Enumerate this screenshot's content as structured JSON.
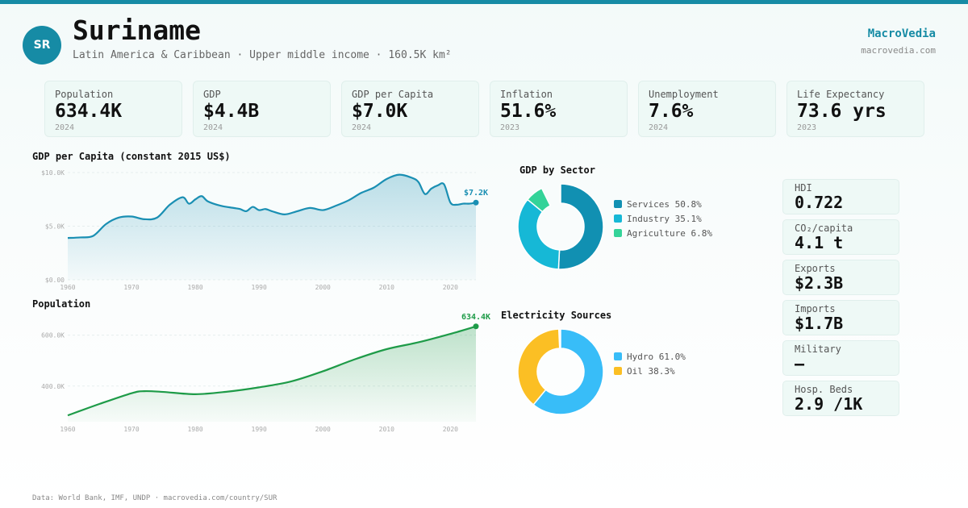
{
  "header": {
    "code": "SR",
    "country": "Suriname",
    "subtitle": "Latin America & Caribbean · Upper middle income · 160.5K km²",
    "brand": "MacroVedia",
    "brand_url": "macrovedia.com"
  },
  "kpis": [
    {
      "label": "Population",
      "value": "634.4K",
      "year": "2024"
    },
    {
      "label": "GDP",
      "value": "$4.4B",
      "year": "2024"
    },
    {
      "label": "GDP per Capita",
      "value": "$7.0K",
      "year": "2024"
    },
    {
      "label": "Inflation",
      "value": "51.6%",
      "year": "2023"
    },
    {
      "label": "Unemployment",
      "value": "7.6%",
      "year": "2024"
    },
    {
      "label": "Life Expectancy",
      "value": "73.6 yrs",
      "year": "2023"
    }
  ],
  "side_stats": [
    {
      "label": "HDI",
      "value": "0.722"
    },
    {
      "label": "CO₂/capita",
      "value": "4.1 t"
    },
    {
      "label": "Exports",
      "value": "$2.3B"
    },
    {
      "label": "Imports",
      "value": "$1.7B"
    },
    {
      "label": "Military",
      "value": "—"
    },
    {
      "label": "Hosp. Beds",
      "value": "2.9 /1K"
    }
  ],
  "footer": "Data: World Bank, IMF, UNDP · macrovedia.com/country/SUR",
  "colors": {
    "accent": "#168ba5",
    "gdp_line": "#1a8fb3",
    "pop_line": "#1e9b48",
    "services": "#1190b2",
    "industry": "#16b8d6",
    "agriculture": "#34d399",
    "hydro": "#38bdf8",
    "oil": "#fbbf24"
  },
  "chart_data": [
    {
      "id": "gdp_per_capita",
      "type": "area",
      "title": "GDP per Capita (constant 2015 US$)",
      "x": [
        1960,
        1962,
        1964,
        1966,
        1968,
        1970,
        1972,
        1974,
        1976,
        1978,
        1979,
        1980,
        1981,
        1982,
        1984,
        1986,
        1987,
        1988,
        1989,
        1990,
        1991,
        1992,
        1994,
        1996,
        1998,
        2000,
        2002,
        2004,
        2006,
        2008,
        2010,
        2012,
        2014,
        2015,
        2016,
        2017,
        2018,
        2019,
        2020,
        2021,
        2022,
        2023,
        2024
      ],
      "y": [
        3900,
        3950,
        4100,
        5200,
        5800,
        5900,
        5650,
        5800,
        7000,
        7700,
        7100,
        7500,
        7800,
        7300,
        6900,
        6700,
        6600,
        6400,
        6800,
        6500,
        6600,
        6400,
        6100,
        6400,
        6700,
        6500,
        6900,
        7400,
        8100,
        8600,
        9400,
        9800,
        9500,
        9100,
        8000,
        8500,
        8800,
        8900,
        7200,
        7000,
        7100,
        7100,
        7200
      ],
      "end_label": "$7.2K",
      "y_ticks": [
        {
          "value": 0,
          "label": "$0.00"
        },
        {
          "value": 5000,
          "label": "$5.0K"
        },
        {
          "value": 10000,
          "label": "$10.0K"
        }
      ],
      "x_ticks": [
        1960,
        1970,
        1980,
        1990,
        2000,
        2010,
        2020
      ],
      "ylim": [
        0,
        10000
      ],
      "xlim": [
        1960,
        2024
      ]
    },
    {
      "id": "population",
      "type": "area",
      "title": "Population",
      "x": [
        1960,
        1965,
        1970,
        1972,
        1975,
        1980,
        1985,
        1990,
        1995,
        2000,
        2005,
        2010,
        2015,
        2020,
        2024
      ],
      "y": [
        285000,
        330000,
        372000,
        380000,
        377000,
        368000,
        378000,
        395000,
        418000,
        458000,
        505000,
        545000,
        572000,
        605000,
        634400
      ],
      "end_label": "634.4K",
      "y_ticks": [
        {
          "value": 400000,
          "label": "400.0K"
        },
        {
          "value": 600000,
          "label": "600.0K"
        }
      ],
      "x_ticks": [
        1960,
        1970,
        1980,
        1990,
        2000,
        2010,
        2020
      ],
      "ylim": [
        260000,
        640000
      ],
      "xlim": [
        1960,
        2024
      ]
    },
    {
      "id": "gdp_by_sector",
      "type": "pie",
      "title": "GDP by Sector",
      "slices": [
        {
          "name": "Services",
          "value": 50.8,
          "label": "Services 50.8%"
        },
        {
          "name": "Industry",
          "value": 35.1,
          "label": "Industry 35.1%"
        },
        {
          "name": "Agriculture",
          "value": 6.8,
          "label": "Agriculture 6.8%"
        }
      ]
    },
    {
      "id": "electricity_sources",
      "type": "pie",
      "title": "Electricity Sources",
      "slices": [
        {
          "name": "Hydro",
          "value": 61.0,
          "label": "Hydro 61.0%"
        },
        {
          "name": "Oil",
          "value": 38.3,
          "label": "Oil 38.3%"
        }
      ]
    }
  ]
}
